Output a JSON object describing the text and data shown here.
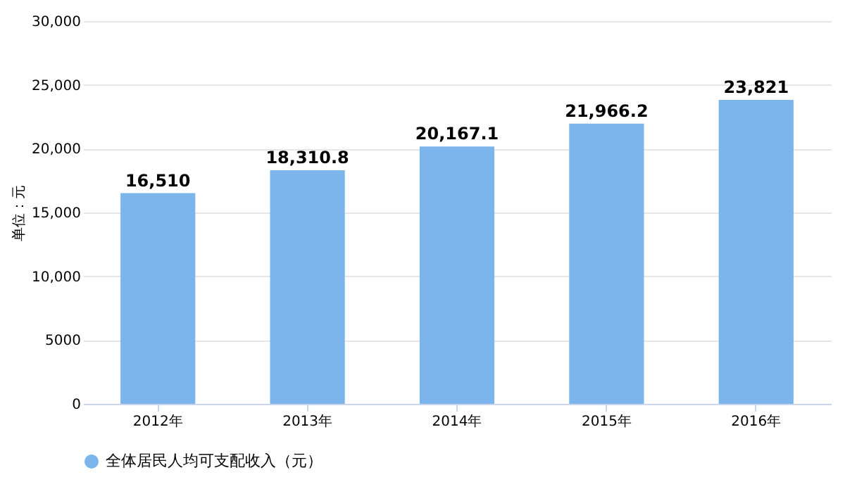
{
  "chart_data": {
    "type": "bar",
    "ylabel": "单位：元",
    "categories": [
      "2012年",
      "2013年",
      "2014年",
      "2015年",
      "2016年"
    ],
    "series": [
      {
        "name": "全体居民人均可支配收入（元）",
        "color": "#7cb5ec",
        "values": [
          16510,
          18310.8,
          20167.1,
          21966.2,
          23821
        ],
        "value_labels": [
          "16,510",
          "18,310.8",
          "20,167.1",
          "21,966.2",
          "23,821"
        ]
      }
    ],
    "ylim": [
      0,
      30000
    ],
    "yticks": [
      0,
      5000,
      {
        "value": 10000,
        "label": "10,000"
      },
      {
        "value": 15000,
        "label": "15,000"
      },
      {
        "value": 20000,
        "label": "20,000"
      },
      {
        "value": 25000,
        "label": "25,000"
      },
      {
        "value": 30000,
        "label": "30,000"
      }
    ],
    "grid": "y",
    "legend": "bottom"
  }
}
